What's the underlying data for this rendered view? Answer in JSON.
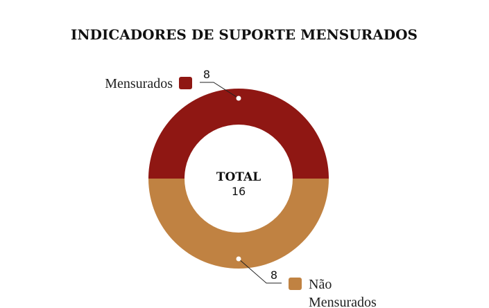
{
  "chart_data": {
    "type": "pie",
    "donut": true,
    "title": "INDICADORES DE SUPORTE MENSURADOS",
    "center_label": {
      "title": "TOTAL",
      "value": "16"
    },
    "slices": [
      {
        "label": "Mensurados",
        "label_lines": [
          "Mensurados"
        ],
        "value": 8,
        "value_label": "8",
        "color": "#8f1713"
      },
      {
        "label": "Não Mensurados",
        "label_lines": [
          "Não",
          "Mensurados"
        ],
        "value": 8,
        "value_label": "8",
        "color": "#c08242"
      }
    ],
    "legend": "inline-callouts"
  }
}
